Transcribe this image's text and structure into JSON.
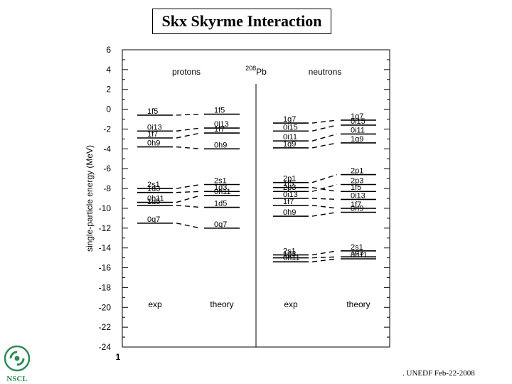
{
  "title": "Skx Skyrme Interaction",
  "footer": ". UNEDF Feb-22-2008",
  "logo_text": "NSCL",
  "colors": {
    "logo_green": "#2e8b57",
    "ink": "#000000"
  },
  "chart_data": {
    "type": "level_scheme",
    "nucleus": "Pb",
    "nucleus_mass": "208",
    "ylabel": "single-particle energy (MeV)",
    "ylim": [
      -24,
      6
    ],
    "yticks": [
      6,
      4,
      2,
      0,
      -2,
      -4,
      -6,
      -8,
      -10,
      -12,
      -14,
      -16,
      -18,
      -20,
      -22,
      -24
    ],
    "x_tick_label": "1",
    "sections": [
      {
        "name": "protons",
        "columns": [
          {
            "label": "exp",
            "levels": [
              {
                "state": "1f5",
                "energy": -0.6
              },
              {
                "state": "0i13",
                "energy": -2.2
              },
              {
                "state": "1f7",
                "energy": -2.9
              },
              {
                "state": "0h9",
                "energy": -3.8
              },
              {
                "state": "2s1",
                "energy": -8.0
              },
              {
                "state": "1d3",
                "energy": -8.4
              },
              {
                "state": "0h11",
                "energy": -9.4
              },
              {
                "state": "1d5",
                "energy": -9.7
              },
              {
                "state": "0g7",
                "energy": -11.5
              }
            ]
          },
          {
            "label": "theory",
            "levels": [
              {
                "state": "1f5",
                "energy": -0.5
              },
              {
                "state": "0i13",
                "energy": -1.9
              },
              {
                "state": "1f7",
                "energy": -2.4
              },
              {
                "state": "0h9",
                "energy": -4.0
              },
              {
                "state": "2s1",
                "energy": -7.6
              },
              {
                "state": "1d3",
                "energy": -8.3
              },
              {
                "state": "0h11",
                "energy": -8.7
              },
              {
                "state": "1d5",
                "energy": -9.9
              },
              {
                "state": "0g7",
                "energy": -12.0
              }
            ]
          }
        ]
      },
      {
        "name": "neutrons",
        "columns": [
          {
            "label": "exp",
            "levels": [
              {
                "state": "1g7",
                "energy": -1.4
              },
              {
                "state": "0i15",
                "energy": -2.2
              },
              {
                "state": "0i11",
                "energy": -3.2
              },
              {
                "state": "1g9",
                "energy": -3.9
              },
              {
                "state": "2p1",
                "energy": -7.4
              },
              {
                "state": "1f5",
                "energy": -7.9
              },
              {
                "state": "2p3",
                "energy": -8.3
              },
              {
                "state": "0i13",
                "energy": -9.0
              },
              {
                "state": "1f7",
                "energy": -9.7
              },
              {
                "state": "0h9",
                "energy": -10.8
              },
              {
                "state": "2s1",
                "energy": -14.7
              },
              {
                "state": "1d3",
                "energy": -15.0
              },
              {
                "state": "0h11",
                "energy": -15.4
              }
            ]
          },
          {
            "label": "theory",
            "levels": [
              {
                "state": "1g7",
                "energy": -1.1
              },
              {
                "state": "0i15",
                "energy": -1.6
              },
              {
                "state": "0i11",
                "energy": -2.5
              },
              {
                "state": "1g9",
                "energy": -3.4
              },
              {
                "state": "2p1",
                "energy": -6.6
              },
              {
                "state": "2p3",
                "energy": -7.6
              },
              {
                "state": "1f5",
                "energy": -8.3
              },
              {
                "state": "0i13",
                "energy": -9.1
              },
              {
                "state": "1f7",
                "energy": -10.0
              },
              {
                "state": "0h9",
                "energy": -10.4
              },
              {
                "state": "2s1",
                "energy": -14.3
              },
              {
                "state": "1d3",
                "energy": -14.9
              },
              {
                "state": "0h11",
                "energy": -15.1
              }
            ]
          }
        ]
      }
    ]
  }
}
